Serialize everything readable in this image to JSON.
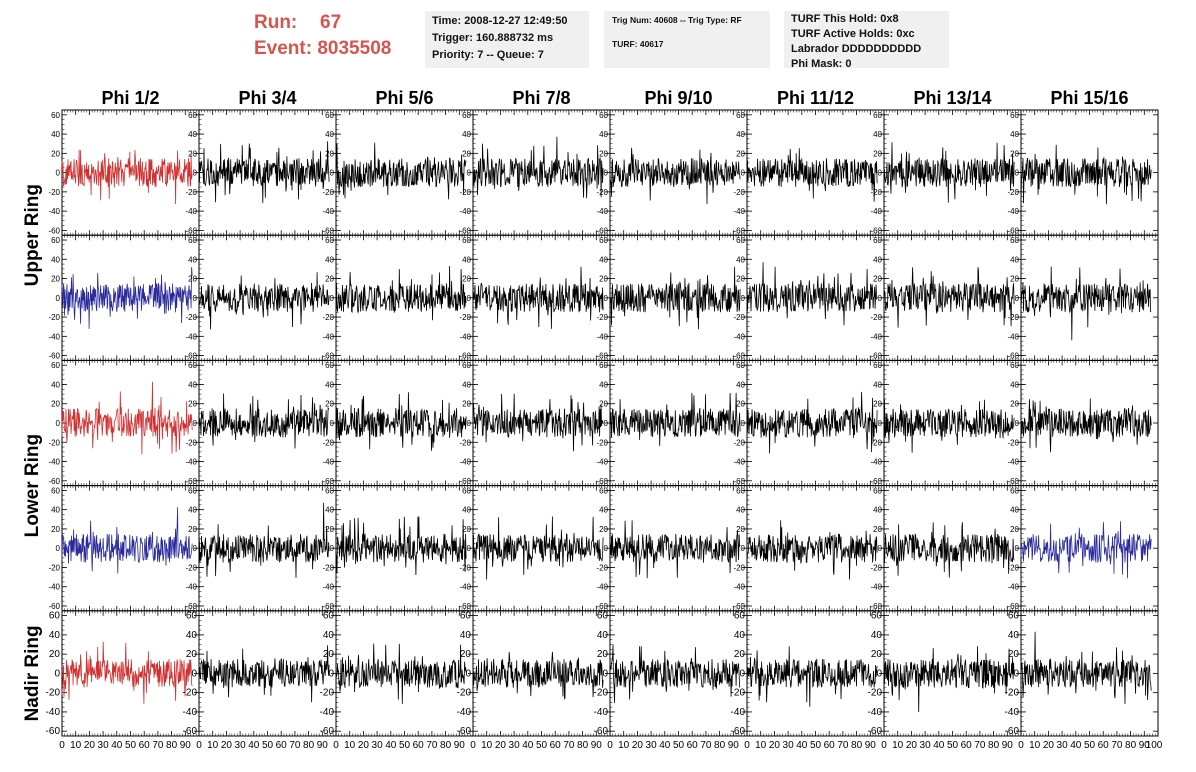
{
  "header": {
    "run_label": "Run:",
    "run_value": "67",
    "event_label": "Event:",
    "event_value": "8035508"
  },
  "info_time": {
    "time": "Time: 2008-12-27 12:49:50",
    "trigger": "Trigger: 160.888732 ms",
    "priority": "Priority: 7 -- Queue: 7"
  },
  "info_trig": {
    "line1": "Trig Num: 40608 -- Trig Type: RF",
    "line2": "TURF: 40617"
  },
  "info_turf": {
    "this_hold": "TURF This Hold: 0x8",
    "active_holds": "TURF Active Holds: 0xc",
    "labrador": "Labrador DDDDDDDDDD",
    "phi_mask": "Phi Mask: 0"
  },
  "columns": [
    "Phi 1/2",
    "Phi 3/4",
    "Phi 5/6",
    "Phi 7/8",
    "Phi 9/10",
    "Phi 11/12",
    "Phi 13/14",
    "Phi 15/16"
  ],
  "row_labels": [
    {
      "text": "Upper Ring",
      "spans_rows": [
        0,
        1
      ]
    },
    {
      "text": "Lower Ring",
      "spans_rows": [
        2,
        3
      ]
    },
    {
      "text": "Nadir Ring",
      "spans_rows": [
        4,
        4
      ]
    }
  ],
  "colors": {
    "trace_default": "#000000",
    "trace_red": "#d03030",
    "trace_blue": "#2a2a9c",
    "header_red": "#d9534f",
    "info_bg": "#f0f0f0"
  },
  "chart_data": {
    "type": "line",
    "rows": 5,
    "cols": 8,
    "panel_x_range": [
      0,
      100
    ],
    "panel_y_range": [
      -65,
      65
    ],
    "y_ticks": [
      -60,
      -40,
      -20,
      0,
      20,
      40,
      60
    ],
    "x_ticks": [
      0,
      10,
      20,
      30,
      40,
      50,
      60,
      70,
      80,
      90
    ],
    "bottom_axis_last_tick": 100,
    "samples_per_trace": 260,
    "trace_x_range": [
      0,
      95
    ],
    "grid": false,
    "highlighted_panels": [
      {
        "row": 0,
        "col": 0,
        "color": "red"
      },
      {
        "row": 1,
        "col": 0,
        "color": "blue"
      },
      {
        "row": 2,
        "col": 0,
        "color": "red"
      },
      {
        "row": 3,
        "col": 0,
        "color": "blue"
      },
      {
        "row": 3,
        "col": 7,
        "color": "blue"
      },
      {
        "row": 4,
        "col": 0,
        "color": "red"
      }
    ],
    "typical_trace_amplitude": 15
  }
}
